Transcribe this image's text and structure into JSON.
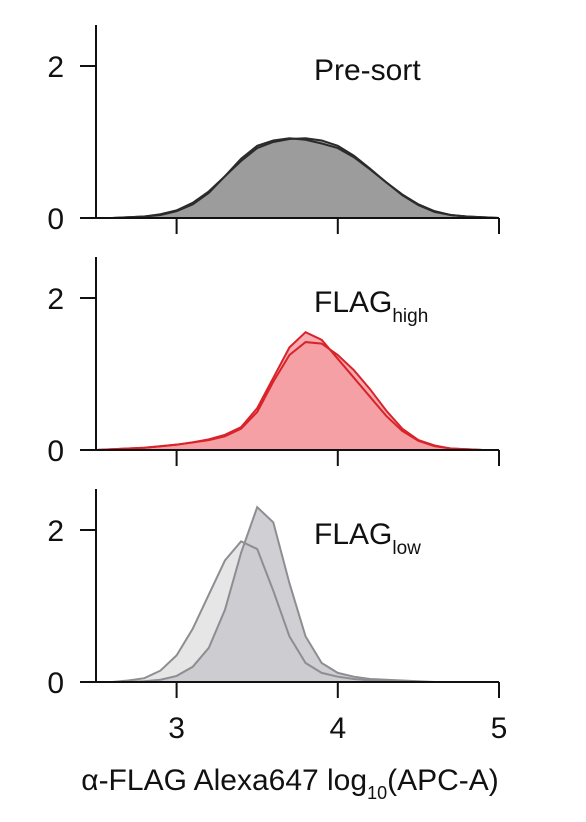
{
  "chart_data": [
    {
      "type": "density",
      "title": "Pre-sort",
      "x": [
        2.5,
        2.6,
        2.7,
        2.8,
        2.9,
        3.0,
        3.1,
        3.2,
        3.3,
        3.4,
        3.5,
        3.6,
        3.7,
        3.8,
        3.9,
        4.0,
        4.1,
        4.2,
        4.3,
        4.4,
        4.5,
        4.6,
        4.7,
        4.8,
        4.9,
        5.0
      ],
      "series": [
        {
          "color": "#2b2b2b",
          "fill": "#9a9a9a",
          "values": [
            0,
            0,
            0.01,
            0.02,
            0.05,
            0.1,
            0.2,
            0.35,
            0.55,
            0.75,
            0.92,
            1.0,
            1.04,
            1.05,
            1.02,
            0.95,
            0.82,
            0.65,
            0.47,
            0.3,
            0.17,
            0.08,
            0.04,
            0.02,
            0.01,
            0
          ]
        },
        {
          "color": "#2b2b2b",
          "fill": "#9a9a9a",
          "values": [
            0,
            0,
            0.01,
            0.02,
            0.04,
            0.09,
            0.18,
            0.33,
            0.55,
            0.78,
            0.95,
            1.02,
            1.05,
            1.03,
            0.98,
            0.92,
            0.8,
            0.64,
            0.47,
            0.31,
            0.18,
            0.09,
            0.04,
            0.02,
            0.01,
            0
          ]
        }
      ],
      "xlim": [
        2.5,
        5
      ],
      "xticks": [
        3,
        4,
        5
      ],
      "ylim": [
        0,
        2.5
      ],
      "yticks": [
        0,
        2
      ]
    },
    {
      "type": "density",
      "title": "FLAG",
      "title_subscript": "high",
      "x": [
        2.5,
        2.6,
        2.7,
        2.8,
        2.9,
        3.0,
        3.1,
        3.2,
        3.3,
        3.4,
        3.5,
        3.6,
        3.7,
        3.8,
        3.9,
        4.0,
        4.1,
        4.2,
        4.3,
        4.4,
        4.5,
        4.6,
        4.7,
        4.8,
        4.9,
        5.0
      ],
      "series": [
        {
          "color": "#d9232b",
          "fill": "#f59ea2",
          "values": [
            0,
            0.01,
            0.02,
            0.03,
            0.05,
            0.07,
            0.1,
            0.14,
            0.2,
            0.3,
            0.55,
            0.95,
            1.35,
            1.55,
            1.45,
            1.2,
            0.95,
            0.7,
            0.45,
            0.25,
            0.12,
            0.05,
            0.02,
            0.01,
            0,
            0
          ]
        },
        {
          "color": "#d9232b",
          "fill": "#f59ea2",
          "values": [
            0,
            0.01,
            0.02,
            0.03,
            0.05,
            0.07,
            0.1,
            0.13,
            0.18,
            0.28,
            0.5,
            0.9,
            1.25,
            1.42,
            1.4,
            1.25,
            1.05,
            0.8,
            0.52,
            0.28,
            0.13,
            0.06,
            0.02,
            0.01,
            0,
            0
          ]
        }
      ],
      "xlim": [
        2.5,
        5
      ],
      "xticks": [
        3,
        4,
        5
      ],
      "ylim": [
        0,
        2.5
      ],
      "yticks": [
        0,
        2
      ]
    },
    {
      "type": "density",
      "title": "FLAG",
      "title_subscript": "low",
      "x": [
        2.5,
        2.6,
        2.7,
        2.8,
        2.9,
        3.0,
        3.1,
        3.2,
        3.3,
        3.4,
        3.5,
        3.6,
        3.7,
        3.8,
        3.9,
        4.0,
        4.1,
        4.2,
        4.3,
        4.4,
        4.5,
        4.6,
        4.7,
        4.8,
        4.9,
        5.0
      ],
      "series": [
        {
          "color": "#8e8e92",
          "fill": "#e2e2e3",
          "values": [
            0,
            0,
            0.02,
            0.05,
            0.15,
            0.35,
            0.7,
            1.15,
            1.6,
            1.85,
            1.75,
            1.2,
            0.6,
            0.25,
            0.12,
            0.07,
            0.04,
            0.02,
            0.01,
            0,
            0,
            0,
            0,
            0,
            0,
            0
          ]
        },
        {
          "color": "#8e8e92",
          "fill": "#c8c8cc",
          "values": [
            0,
            0,
            0,
            0.01,
            0.03,
            0.08,
            0.2,
            0.45,
            0.95,
            1.7,
            2.3,
            2.1,
            1.3,
            0.6,
            0.25,
            0.12,
            0.07,
            0.04,
            0.03,
            0.02,
            0.01,
            0,
            0,
            0,
            0,
            0
          ]
        }
      ],
      "xlim": [
        2.5,
        5
      ],
      "xticks": [
        3,
        4,
        5
      ],
      "ylim": [
        0,
        2.5
      ],
      "yticks": [
        0,
        2
      ],
      "xlabel": {
        "text": "α-FLAG Alexa647 log",
        "subscript": "10",
        "suffix": "(APC-A)"
      }
    }
  ]
}
